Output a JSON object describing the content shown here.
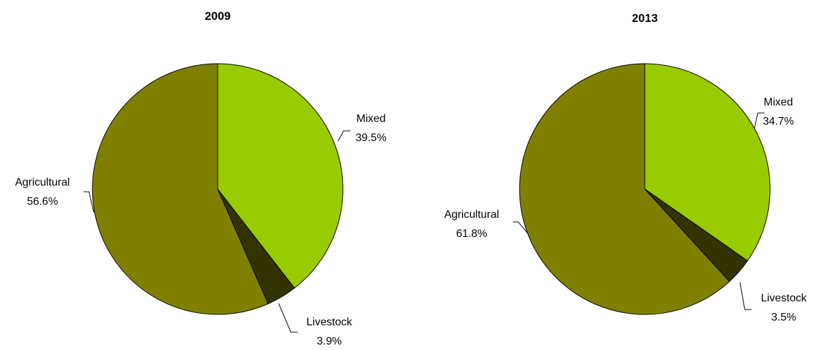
{
  "chart_data": [
    {
      "type": "pie",
      "title": "2009",
      "categories": [
        "Mixed",
        "Livestock",
        "Agricultural"
      ],
      "values": [
        39.5,
        3.9,
        56.6
      ],
      "labels": [
        "39.5%",
        "3.9%",
        "56.6%"
      ],
      "colors": [
        "#99CC00",
        "#333300",
        "#808000"
      ],
      "start_angle": "12 o'clock",
      "direction": "clockwise",
      "legend": "none"
    },
    {
      "type": "pie",
      "title": "2013",
      "categories": [
        "Mixed",
        "Livestock",
        "Agricultural"
      ],
      "values": [
        34.7,
        3.5,
        61.8
      ],
      "labels": [
        "34.7%",
        "3.5%",
        "61.8%"
      ],
      "colors": [
        "#99CC00",
        "#333300",
        "#808000"
      ],
      "start_angle": "12 o'clock",
      "direction": "clockwise",
      "legend": "none"
    }
  ]
}
